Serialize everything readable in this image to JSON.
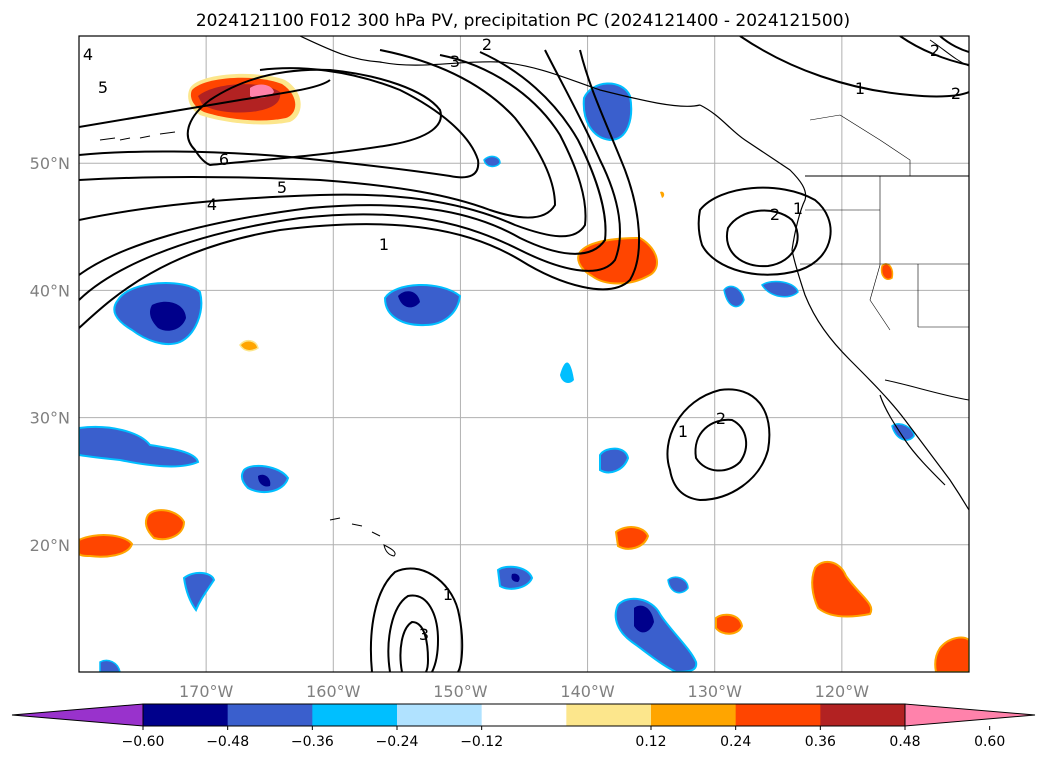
{
  "title": "2024121100 F012 300 hPa PV, precipitation PC (2024121400 - 2024121500)",
  "map": {
    "lat_labels": [
      "50°N",
      "40°N",
      "30°N",
      "20°N"
    ],
    "lon_labels": [
      "170°W",
      "160°W",
      "150°W",
      "140°W",
      "130°W",
      "120°W"
    ],
    "lat_values": [
      50,
      40,
      30,
      20
    ],
    "lon_values": [
      -170,
      -160,
      -150,
      -140,
      -130,
      -120
    ],
    "lon_range": [
      -180,
      -110
    ],
    "lat_range": [
      10,
      60
    ],
    "grid": true
  },
  "colorbar": {
    "ticks": [
      "−0.60",
      "−0.48",
      "−0.36",
      "−0.24",
      "−0.12",
      "0.12",
      "0.24",
      "0.36",
      "0.48",
      "0.60"
    ],
    "tick_values": [
      -0.6,
      -0.48,
      -0.36,
      -0.24,
      -0.12,
      0.12,
      0.24,
      0.36,
      0.48,
      0.6
    ],
    "colors": [
      "#9932cc",
      "#00008b",
      "#3a5fcd",
      "#00bfff",
      "#b0e2ff",
      "#ffffff",
      "#fce68c",
      "#ffa500",
      "#ff4500",
      "#b22222",
      "#ff82ab"
    ],
    "extend": "both"
  },
  "pv_contour_labels": [
    {
      "text": "5"
    },
    {
      "text": "4"
    },
    {
      "text": "3"
    },
    {
      "text": "2"
    },
    {
      "text": "6"
    },
    {
      "text": "5"
    },
    {
      "text": "4"
    },
    {
      "text": "1"
    },
    {
      "text": "2"
    },
    {
      "text": "1"
    },
    {
      "text": "1"
    },
    {
      "text": "2"
    },
    {
      "text": "2"
    },
    {
      "text": "1"
    },
    {
      "text": "1"
    },
    {
      "text": "2"
    },
    {
      "text": "3"
    }
  ]
}
